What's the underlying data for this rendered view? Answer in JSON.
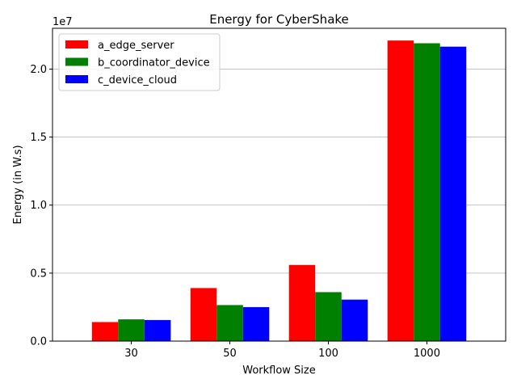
{
  "chart_data": {
    "type": "bar",
    "title": "Energy for CyberShake",
    "xlabel": "Workflow Size",
    "ylabel": "Energy (in W.s)",
    "scale_label": "1e7",
    "categories": [
      "30",
      "50",
      "100",
      "1000"
    ],
    "ylim": [
      0,
      2.3
    ],
    "yticks": [
      0.0,
      0.5,
      1.0,
      1.5,
      2.0
    ],
    "ytick_labels": [
      "0.0",
      "0.5",
      "1.0",
      "1.5",
      "2.0"
    ],
    "grid": "y",
    "legend_position": "top-left",
    "series": [
      {
        "name": "a_edge_server",
        "color": "#ff0000",
        "values": [
          0.14,
          0.39,
          0.56,
          2.21
        ]
      },
      {
        "name": "b_coordinator_device",
        "color": "#008000",
        "values": [
          0.16,
          0.265,
          0.36,
          2.19
        ]
      },
      {
        "name": "c_device_cloud",
        "color": "#0000ff",
        "values": [
          0.155,
          0.25,
          0.305,
          2.165
        ]
      }
    ]
  }
}
